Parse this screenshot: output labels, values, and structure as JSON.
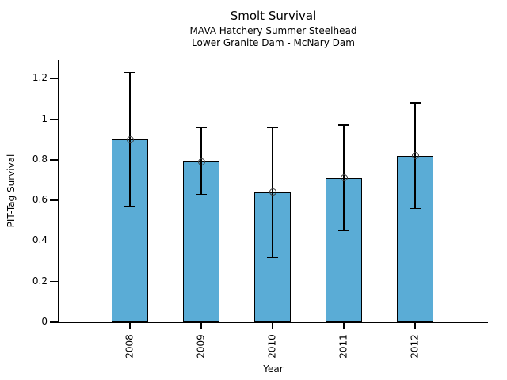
{
  "chart_data": {
    "type": "bar",
    "title": "Smolt Survival",
    "subtitle1": "MAVA Hatchery Summer Steelhead",
    "subtitle2": "Lower Granite Dam - McNary Dam",
    "xlabel": "Year",
    "ylabel": "PIT-Tag Survival",
    "categories": [
      "2008",
      "2009",
      "2010",
      "2011",
      "2012"
    ],
    "values": [
      0.9,
      0.79,
      0.64,
      0.71,
      0.82
    ],
    "error_low": [
      0.57,
      0.63,
      0.32,
      0.45,
      0.56
    ],
    "error_high": [
      1.23,
      0.96,
      0.96,
      0.97,
      1.08
    ],
    "ytick_labels": [
      "0",
      "0.2",
      "0.4",
      "0.6",
      "0.8",
      "1",
      "1.2"
    ],
    "ytick_values": [
      0,
      0.2,
      0.4,
      0.6,
      0.8,
      1.0,
      1.2
    ],
    "ylim": [
      0,
      1.3
    ],
    "bar_color": "#5AACD6",
    "bar_edge_color": "#000000",
    "error_color": "#000000",
    "marker": "open-circle",
    "marker_color": "#3c3c3c",
    "grid": false,
    "legend": false,
    "x_tick_rotation": 90
  }
}
